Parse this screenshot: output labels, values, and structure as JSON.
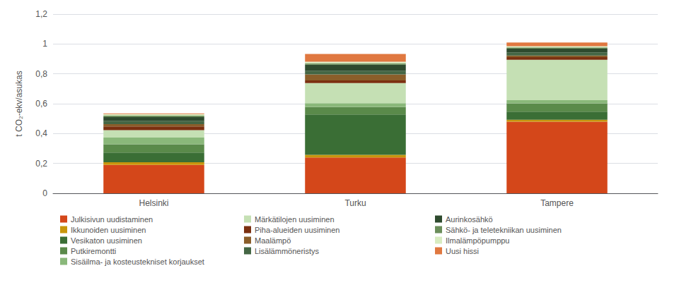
{
  "chart_data": {
    "type": "bar",
    "stacked": true,
    "categories": [
      "Helsinki",
      "Turku",
      "Tampere"
    ],
    "ylabel": "t CO₂-ekv/asukas",
    "ylim": [
      0,
      1.2
    ],
    "yticks": [
      0,
      {
        "value": 0.2,
        "label": "0,2"
      },
      {
        "value": 0.4,
        "label": "0,4"
      },
      {
        "value": 0.6,
        "label": "0,6"
      },
      {
        "value": 0.8,
        "label": "0,8"
      },
      1,
      {
        "value": 1.2,
        "label": "1,2"
      }
    ],
    "grid": true,
    "legend": "bottom",
    "series": [
      {
        "name": "Julkisivun uudistaminen",
        "color": "#d4471a",
        "values": [
          0.19,
          0.24,
          0.48
        ]
      },
      {
        "name": "Ikkunoiden uusiminen",
        "color": "#c8960c",
        "values": [
          0.018,
          0.018,
          0.012
        ]
      },
      {
        "name": "Vesikaton uusiminen",
        "color": "#3a6e35",
        "values": [
          0.065,
          0.27,
          0.055
        ]
      },
      {
        "name": "Putkiremontti",
        "color": "#5a8a4a",
        "values": [
          0.055,
          0.05,
          0.055
        ]
      },
      {
        "name": "Sisäilma- ja kosteustekniset korjaukset",
        "color": "#8ab87a",
        "values": [
          0.045,
          0.025,
          0.022
        ]
      },
      {
        "name": "Märkätilojen uusiminen",
        "color": "#c5e0b4",
        "values": [
          0.05,
          0.135,
          0.27
        ]
      },
      {
        "name": "Piha-alueiden uusiminen",
        "color": "#7b3010",
        "values": [
          0.025,
          0.018,
          0.018
        ]
      },
      {
        "name": "Maalämpö",
        "color": "#8b5e2a",
        "values": [
          0.015,
          0.04,
          0.01
        ]
      },
      {
        "name": "Lisälämmöneristys",
        "color": "#446644",
        "values": [
          0.022,
          0.025,
          0.022
        ]
      },
      {
        "name": "Aurinkosähkö",
        "color": "#2e4a2e",
        "values": [
          0.025,
          0.04,
          0.025
        ]
      },
      {
        "name": "Sähkö- ja teletekniikan uusiminen",
        "color": "#6b8e5a",
        "values": [
          0.01,
          0.01,
          0.008
        ]
      },
      {
        "name": "Ilmalämpöpumppu",
        "color": "#d8ecc0",
        "values": [
          0.01,
          0.01,
          0.008
        ]
      },
      {
        "name": "Uusi hissi",
        "color": "#e07840",
        "values": [
          0.005,
          0.052,
          0.025
        ]
      }
    ]
  }
}
